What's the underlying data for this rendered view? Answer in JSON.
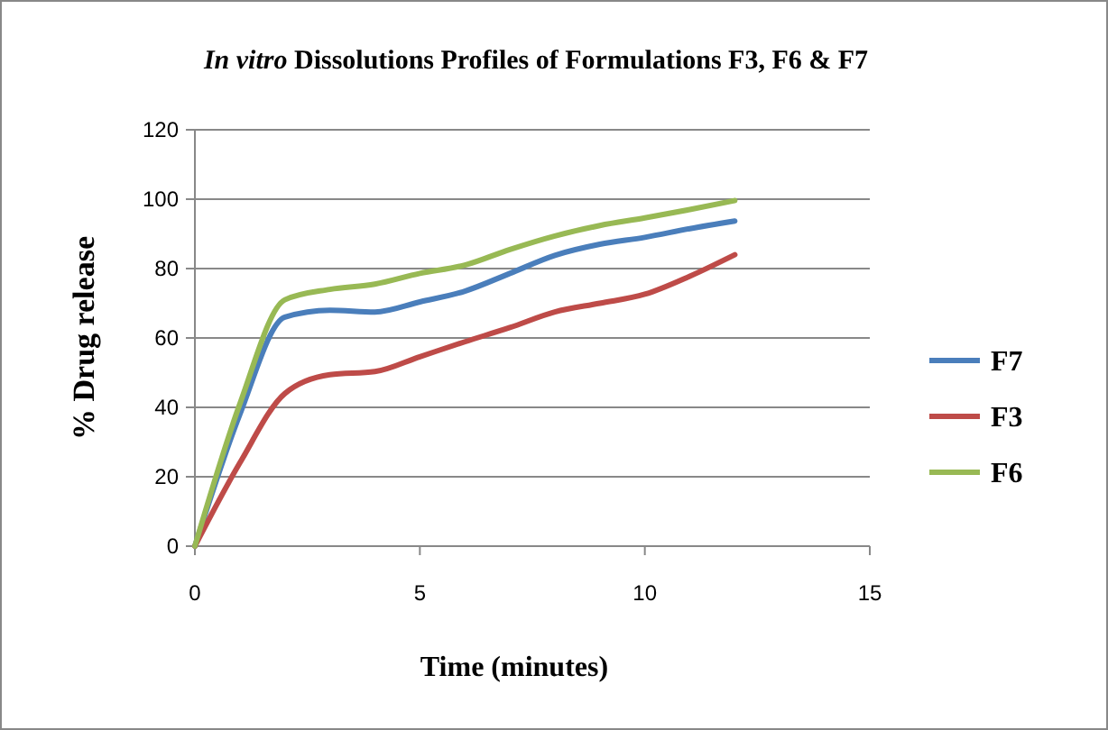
{
  "chart_data": {
    "type": "line",
    "title": "In vitro Dissolutions Profiles of Formulations F3, F6 & F7",
    "xlabel": "Time (minutes)",
    "ylabel": "% Drug release",
    "x": [
      0,
      1,
      2,
      3,
      4,
      5,
      6,
      7,
      8,
      9,
      10,
      11,
      12
    ],
    "xlim": [
      0,
      15
    ],
    "xticks": [
      0,
      5,
      10,
      15
    ],
    "ylim": [
      0,
      120
    ],
    "yticks": [
      0,
      20,
      40,
      60,
      80,
      100,
      120
    ],
    "grid": "y",
    "legend": "right",
    "marker": "none",
    "line_style": "solid",
    "series": [
      {
        "name": "F7",
        "color": "#4a7ebb",
        "values": [
          0,
          38,
          66,
          68,
          67.5,
          70.4,
          73.5,
          78.6,
          83.8,
          87,
          89,
          91.5,
          93.7
        ]
      },
      {
        "name": "F3",
        "color": "#be4b48",
        "values": [
          0,
          24,
          44,
          49.4,
          50.3,
          54.6,
          58.9,
          63,
          67.5,
          70,
          72.6,
          77.8,
          84
        ]
      },
      {
        "name": "F6",
        "color": "#98b954",
        "values": [
          0,
          41,
          71,
          74,
          75.5,
          78.6,
          81,
          85.5,
          89.4,
          92.4,
          94.6,
          97,
          99.6
        ]
      }
    ]
  }
}
